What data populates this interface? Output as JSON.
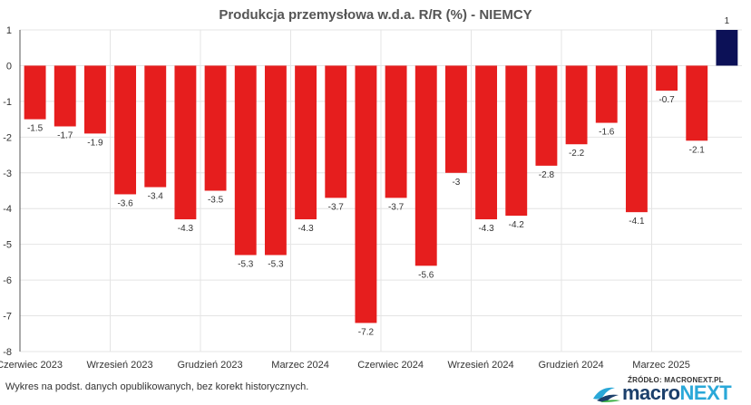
{
  "colors": {
    "negative_bar": "#e61e1e",
    "latest_bar": "#0c1157",
    "grid": "#e4e4e4",
    "axis": "#555555"
  },
  "chart_data": {
    "type": "bar",
    "title": "Produkcja przemysłowa w.d.a. R/R (%) - NIEMCY",
    "xlabel": "",
    "ylabel": "",
    "ylim": [
      -8,
      1
    ],
    "yticks": [
      1,
      0,
      -1,
      -2,
      -3,
      -4,
      -5,
      -6,
      -7,
      -8
    ],
    "grid": true,
    "legend": "none",
    "categories": [
      "2023-06",
      "2023-07",
      "2023-08",
      "2023-09",
      "2023-10",
      "2023-11",
      "2023-12",
      "2024-01",
      "2024-02",
      "2024-03",
      "2024-04",
      "2024-05",
      "2024-06",
      "2024-07",
      "2024-08",
      "2024-09",
      "2024-10",
      "2024-11",
      "2024-12",
      "2025-01",
      "2025-02",
      "2025-03",
      "2025-04",
      "2025-05"
    ],
    "values": [
      -1.5,
      -1.7,
      -1.9,
      -3.6,
      -3.4,
      -4.3,
      -3.5,
      -5.3,
      -5.3,
      -4.3,
      -3.7,
      -7.2,
      -3.7,
      -5.6,
      -3,
      -4.3,
      -4.2,
      -2.8,
      -2.2,
      -1.6,
      -4.1,
      -0.7,
      -2.1,
      1
    ],
    "highlight_last": true,
    "xtick_labels": [
      {
        "index": 0,
        "label": "Czerwiec 2023"
      },
      {
        "index": 3,
        "label": "Wrzesień 2023"
      },
      {
        "index": 6,
        "label": "Grudzień 2023"
      },
      {
        "index": 9,
        "label": "Marzec 2024"
      },
      {
        "index": 12,
        "label": "Czerwiec 2024"
      },
      {
        "index": 15,
        "label": "Wrzesień 2024"
      },
      {
        "index": 18,
        "label": "Grudzień 2024"
      },
      {
        "index": 21,
        "label": "Marzec 2025"
      }
    ]
  },
  "footer": {
    "note": "Wykres na podst. danych opublikowanych, bez korekt historycznych.",
    "source_label": "ŹRÓDŁO: MACRONEXT.PL",
    "logo_macro": "macro",
    "logo_next": "NEXT"
  }
}
